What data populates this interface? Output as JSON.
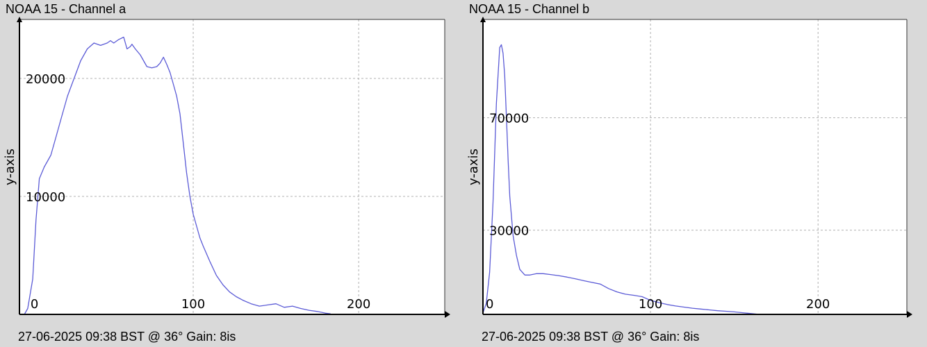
{
  "chart_data": [
    {
      "type": "line",
      "title": "NOAA 15 - Channel a",
      "ylabel": "y-axis",
      "xlabel": "",
      "footer": "27-06-2025 09:38 BST @ 36° Gain: 8is",
      "xlim": [
        -5,
        252
      ],
      "ylim": [
        0,
        25000
      ],
      "x_ticks": [
        0,
        100,
        200
      ],
      "y_ticks": [
        10000,
        20000
      ],
      "grid": true,
      "series": [
        {
          "color": "#5a5ad6",
          "x": [
            -2,
            0,
            3,
            5,
            7,
            10,
            12,
            14,
            17,
            20,
            24,
            28,
            32,
            36,
            40,
            44,
            48,
            50,
            52,
            55,
            58,
            60,
            62,
            63,
            65,
            68,
            70,
            72,
            75,
            78,
            80,
            82,
            84,
            86,
            88,
            90,
            92,
            94,
            96,
            98,
            100,
            102,
            104,
            106,
            110,
            114,
            118,
            122,
            126,
            130,
            135,
            140,
            145,
            150,
            155,
            160,
            165,
            170,
            175,
            180,
            183
          ],
          "y": [
            0,
            500,
            3000,
            8000,
            11500,
            12500,
            13000,
            13500,
            15000,
            16500,
            18500,
            20000,
            21500,
            22500,
            23000,
            22800,
            23000,
            23200,
            23000,
            23300,
            23500,
            22500,
            22700,
            22900,
            22500,
            22000,
            21500,
            21000,
            20900,
            21000,
            21300,
            21800,
            21200,
            20500,
            19500,
            18500,
            17000,
            14500,
            12000,
            10000,
            8500,
            7500,
            6500,
            5800,
            4500,
            3300,
            2500,
            1900,
            1500,
            1200,
            900,
            700,
            800,
            900,
            600,
            700,
            500,
            350,
            250,
            100,
            50
          ]
        }
      ]
    },
    {
      "type": "line",
      "title": "NOAA 15 - Channel b",
      "ylabel": "y-axis",
      "xlabel": "",
      "footer": "27-06-2025 09:38 BST @ 36° Gain: 8is",
      "xlim": [
        0,
        253
      ],
      "ylim": [
        0,
        105000
      ],
      "x_ticks": [
        0,
        100,
        200
      ],
      "y_ticks": [
        30000,
        70000
      ],
      "grid": true,
      "series": [
        {
          "color": "#5a5ad6",
          "x": [
            0,
            2,
            4,
            6,
            8,
            10,
            11,
            12,
            13,
            14,
            15,
            16,
            18,
            20,
            22,
            25,
            28,
            32,
            36,
            40,
            45,
            50,
            55,
            60,
            65,
            70,
            75,
            80,
            85,
            90,
            95,
            100,
            105,
            110,
            115,
            120,
            125,
            130,
            135,
            140,
            145,
            150,
            155,
            160,
            165
          ],
          "y": [
            500,
            4000,
            15000,
            40000,
            75000,
            95000,
            96000,
            93000,
            85000,
            70000,
            55000,
            42000,
            28000,
            21000,
            16000,
            14000,
            14000,
            14500,
            14500,
            14200,
            13800,
            13300,
            12700,
            12000,
            11400,
            10800,
            9200,
            8000,
            7200,
            6800,
            6300,
            5000,
            4200,
            3500,
            3000,
            2600,
            2200,
            1900,
            1600,
            1300,
            1100,
            900,
            600,
            300,
            0
          ]
        }
      ]
    }
  ]
}
